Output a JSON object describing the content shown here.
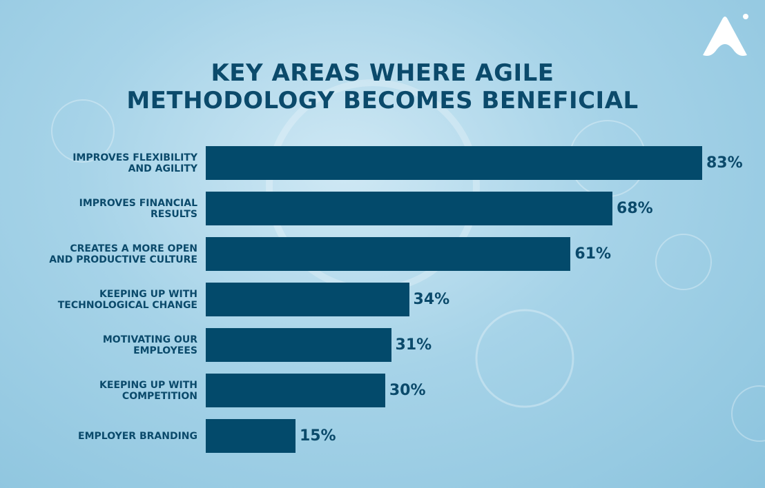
{
  "chart_data": {
    "type": "bar",
    "orientation": "horizontal",
    "title": "KEY AREAS WHERE AGILE\nMETHODOLOGY BECOMES BENEFICIAL",
    "categories": [
      "IMPROVES FLEXIBILITY\nAND AGILITY",
      "IMPROVES FINANCIAL\nRESULTS",
      "CREATES A MORE OPEN\nAND PRODUCTIVE CULTURE",
      "KEEPING UP WITH\nTECHNOLOGICAL CHANGE",
      "MOTIVATING OUR\nEMPLOYEES",
      "KEEPING UP WITH\nCOMPETITION",
      "EMPLOYER BRANDING"
    ],
    "values": [
      83,
      68,
      61,
      34,
      31,
      30,
      15
    ],
    "value_labels": [
      "83%",
      "68%",
      "61%",
      "34%",
      "31%",
      "30%",
      "15%"
    ],
    "color": "#034a6b"
  }
}
